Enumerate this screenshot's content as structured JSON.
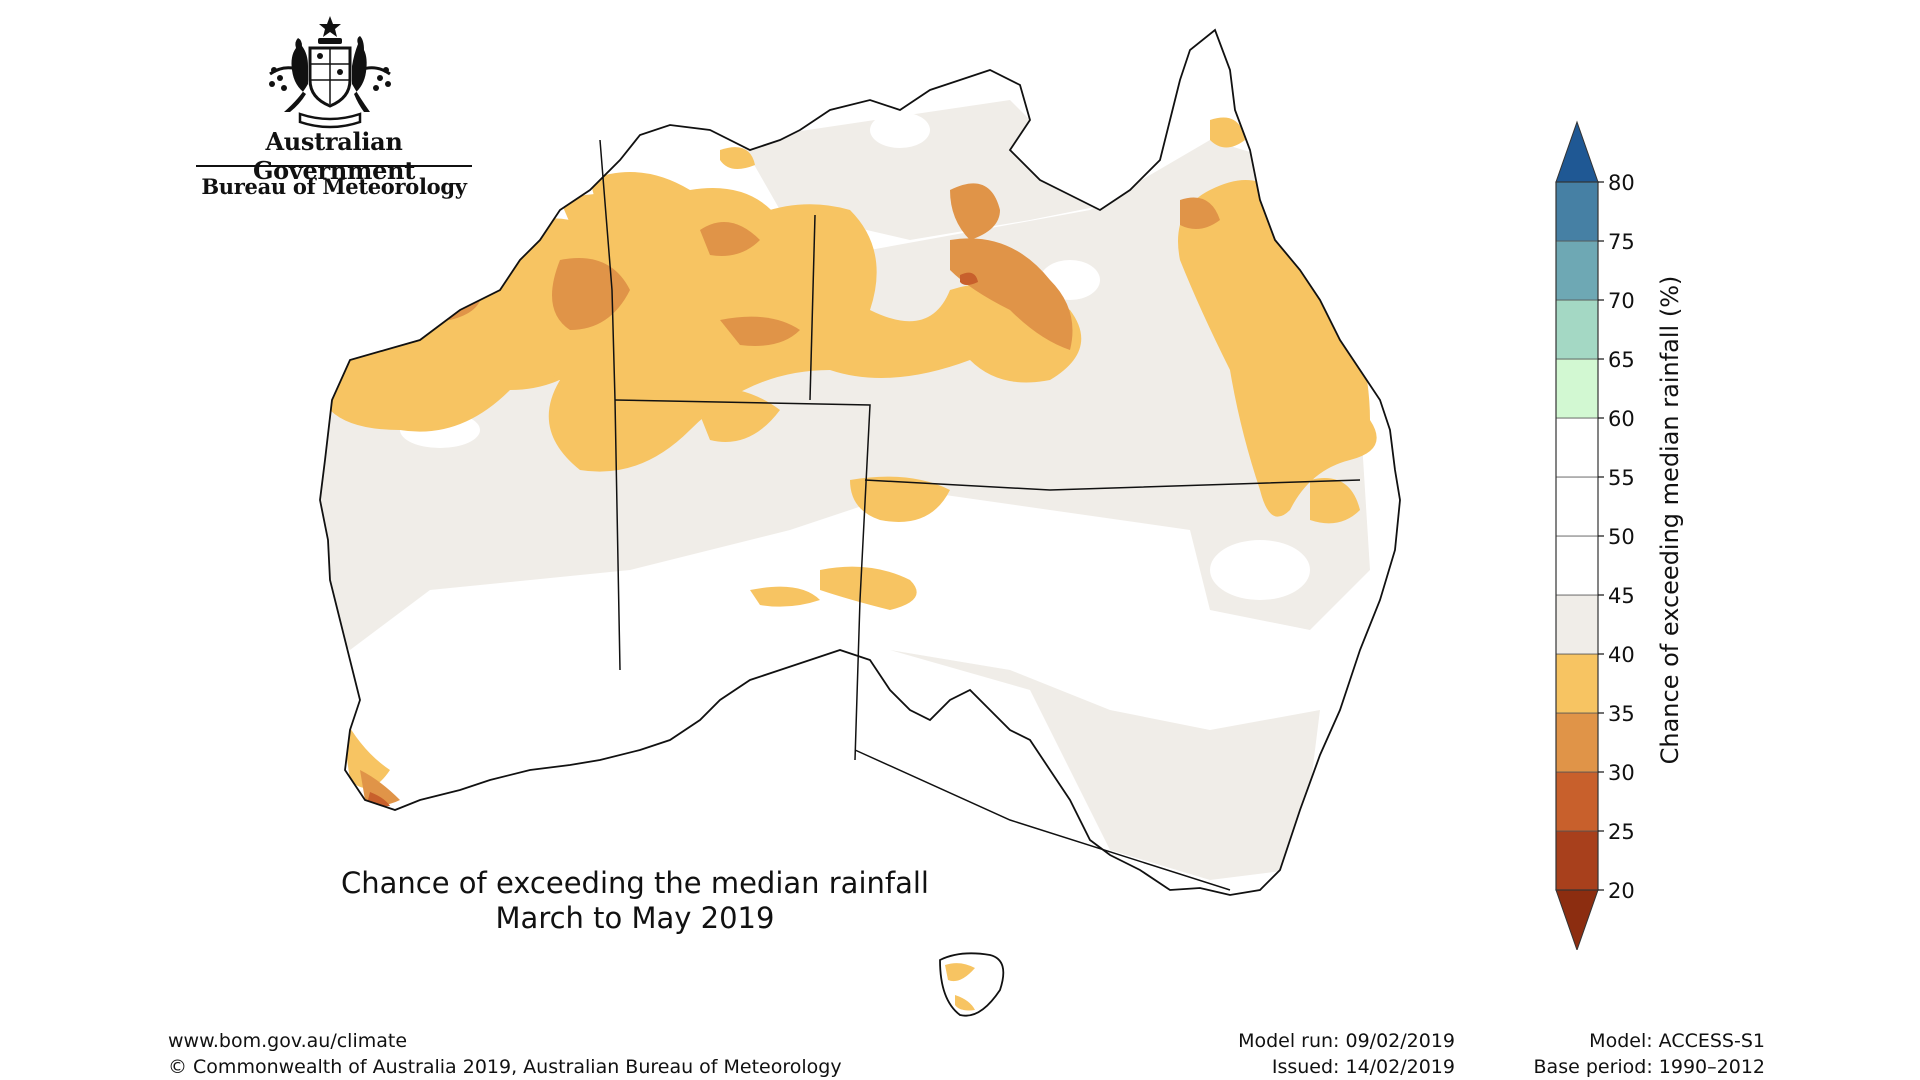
{
  "header": {
    "government_name": "Australian Government",
    "agency_name": "Bureau of Meteorology",
    "emblem_icon": "coat-of-arms-icon"
  },
  "map": {
    "title_line1": "Chance of exceeding the median rainfall",
    "title_line2": "March to May 2019",
    "region": "Australia",
    "ocean_color": "#ffffff",
    "coastline_color": "#111111"
  },
  "colorbar": {
    "label": "Chance of exceeding median rainfall (%)",
    "ticks": [
      "20",
      "25",
      "30",
      "35",
      "40",
      "45",
      "50",
      "55",
      "60",
      "65",
      "70",
      "75",
      "80"
    ],
    "bins": [
      {
        "range": "<20",
        "color": "#8c2d10"
      },
      {
        "range": "20-25",
        "color": "#a8401c"
      },
      {
        "range": "25-30",
        "color": "#c8602c"
      },
      {
        "range": "30-35",
        "color": "#e09448"
      },
      {
        "range": "35-40",
        "color": "#f7c462"
      },
      {
        "range": "40-45",
        "color": "#f0ede8"
      },
      {
        "range": "45-50",
        "color": "#ffffff"
      },
      {
        "range": "50-55",
        "color": "#ffffff"
      },
      {
        "range": "55-60",
        "color": "#ffffff"
      },
      {
        "range": "60-65",
        "color": "#d2f8d2"
      },
      {
        "range": "65-70",
        "color": "#a4d8c4"
      },
      {
        "range": "70-75",
        "color": "#6ea8b4"
      },
      {
        "range": "75-80",
        "color": "#4680a4"
      },
      {
        "range": ">80",
        "color": "#1f5894"
      }
    ]
  },
  "footer": {
    "url": "www.bom.gov.au/climate",
    "copyright": "© Commonwealth of Australia 2019, Australian Bureau of Meteorology",
    "model_run": "Model run: 09/02/2019",
    "issued": "Issued: 14/02/2019",
    "model": "Model: ACCESS-S1",
    "base_period": "Base period: 1990–2012"
  }
}
